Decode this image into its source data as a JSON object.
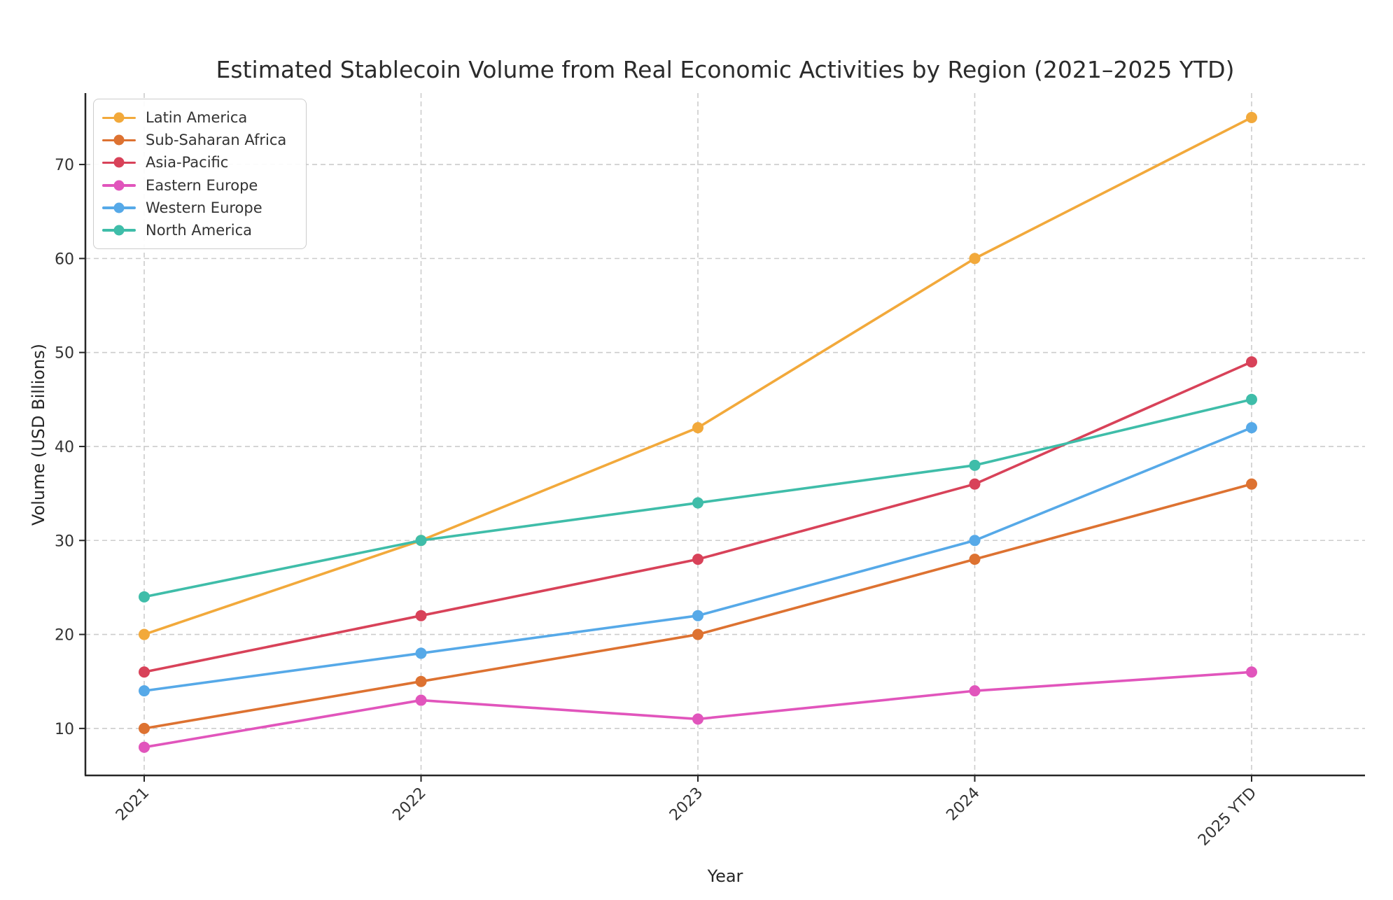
{
  "chart_data": {
    "type": "line",
    "title": "Estimated Stablecoin Volume from Real Economic Activities by Region (2021–2025 YTD)",
    "xlabel": "Year",
    "ylabel": "Volume (USD Billions)",
    "categories": [
      "2021",
      "2022",
      "2023",
      "2024",
      "2025 YTD"
    ],
    "yticks": [
      10,
      20,
      30,
      40,
      50,
      60,
      70
    ],
    "ylim": [
      5,
      77.6
    ],
    "grid": true,
    "grid_style": "dashed",
    "legend_position": "upper left",
    "series": [
      {
        "name": "Latin America",
        "color": "#F2A93B",
        "values": [
          20,
          30,
          42,
          60,
          75
        ]
      },
      {
        "name": "Sub-Saharan Africa",
        "color": "#DD7231",
        "values": [
          10,
          15,
          20,
          28,
          36
        ]
      },
      {
        "name": "Asia-Pacific",
        "color": "#D84259",
        "values": [
          16,
          22,
          28,
          36,
          49
        ]
      },
      {
        "name": "Eastern Europe",
        "color": "#E155BC",
        "values": [
          8,
          13,
          11,
          14,
          16
        ]
      },
      {
        "name": "Western Europe",
        "color": "#56A9E8",
        "values": [
          14,
          18,
          22,
          30,
          42
        ]
      },
      {
        "name": "North America",
        "color": "#3FBDA9",
        "values": [
          24,
          30,
          34,
          38,
          45
        ]
      }
    ],
    "colors": {
      "grid": "#cccccc",
      "spine": "#262626",
      "tick_label": "#333333",
      "title": "#2b2b2b"
    }
  }
}
